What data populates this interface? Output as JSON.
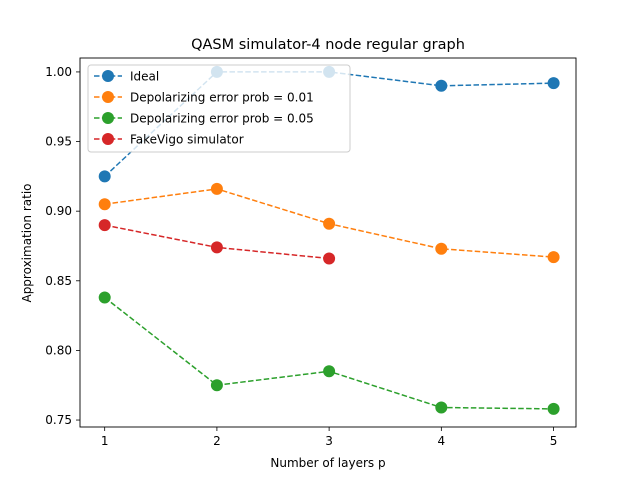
{
  "chart_data": {
    "type": "line",
    "title": "QASM simulator-4 node regular graph",
    "xlabel": "Number of layers p",
    "ylabel": "Approximation ratio",
    "xlim": [
      0.78,
      5.2
    ],
    "ylim": [
      0.745,
      1.01
    ],
    "xticks": [
      1,
      2,
      3,
      4,
      5
    ],
    "yticks": [
      0.75,
      0.8,
      0.85,
      0.9,
      0.95,
      1.0
    ],
    "ytick_labels": [
      "0.75",
      "0.80",
      "0.85",
      "0.90",
      "0.95",
      "1.00"
    ],
    "grid": false,
    "legend_position": "top-left",
    "series": [
      {
        "name": "Ideal",
        "color": "#1f77b4",
        "x": [
          1,
          2,
          3,
          4,
          5
        ],
        "y": [
          0.925,
          1.0,
          1.0,
          0.99,
          0.992
        ]
      },
      {
        "name": "Depolarizing error prob = 0.01",
        "color": "#ff7f0e",
        "x": [
          1,
          2,
          3,
          4,
          5
        ],
        "y": [
          0.905,
          0.916,
          0.891,
          0.873,
          0.867
        ]
      },
      {
        "name": "Depolarizing error prob = 0.05",
        "color": "#2ca02c",
        "x": [
          1,
          2,
          3,
          4,
          5
        ],
        "y": [
          0.838,
          0.775,
          0.785,
          0.759,
          0.758
        ]
      },
      {
        "name": "FakeVigo simulator",
        "color": "#d62728",
        "x": [
          1,
          2,
          3
        ],
        "y": [
          0.89,
          0.874,
          0.866
        ]
      }
    ]
  }
}
